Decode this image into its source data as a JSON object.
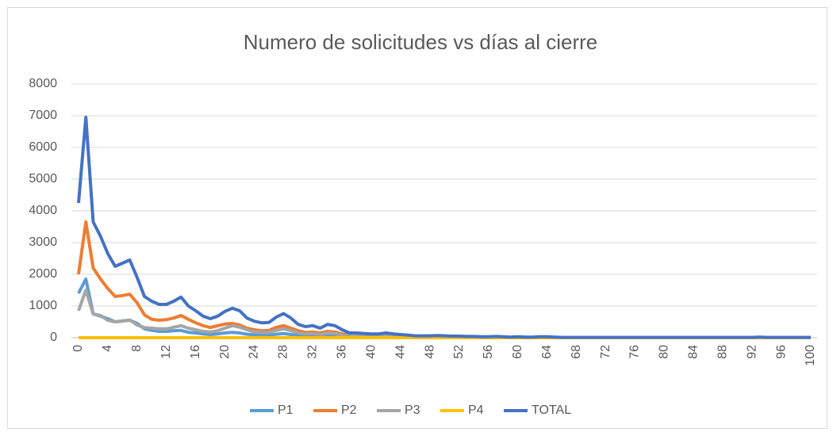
{
  "chart_data": {
    "type": "line",
    "title": "Numero de solicitudes vs días al cierre",
    "x": [
      0,
      1,
      2,
      3,
      4,
      5,
      6,
      7,
      8,
      9,
      10,
      11,
      12,
      13,
      14,
      15,
      16,
      17,
      18,
      19,
      20,
      21,
      22,
      23,
      24,
      25,
      26,
      27,
      28,
      29,
      30,
      31,
      32,
      33,
      34,
      35,
      36,
      37,
      38,
      39,
      40,
      41,
      42,
      43,
      44,
      45,
      46,
      47,
      48,
      49,
      50,
      51,
      52,
      53,
      54,
      55,
      56,
      57,
      58,
      59,
      60,
      61,
      62,
      63,
      64,
      65,
      66,
      67,
      68,
      69,
      70,
      71,
      72,
      73,
      74,
      75,
      76,
      77,
      78,
      79,
      80,
      81,
      82,
      83,
      84,
      85,
      86,
      87,
      88,
      89,
      90,
      91,
      92,
      93,
      94,
      95,
      96,
      97,
      98,
      99,
      100
    ],
    "xlim": [
      0,
      100
    ],
    "xticks": [
      0,
      4,
      8,
      12,
      16,
      20,
      24,
      28,
      32,
      36,
      40,
      44,
      48,
      52,
      56,
      60,
      64,
      68,
      72,
      76,
      80,
      84,
      88,
      92,
      96,
      100
    ],
    "ylim": [
      0,
      8000
    ],
    "yticks": [
      0,
      1000,
      2000,
      3000,
      4000,
      5000,
      6000,
      7000,
      8000
    ],
    "grid": true,
    "legend": "bottom",
    "series": [
      {
        "name": "P1",
        "color": "#5b9bd5",
        "values": [
          1400,
          1850,
          750,
          680,
          600,
          500,
          530,
          550,
          450,
          280,
          230,
          200,
          200,
          220,
          230,
          170,
          150,
          120,
          100,
          120,
          150,
          170,
          150,
          110,
          90,
          80,
          80,
          110,
          130,
          100,
          70,
          60,
          60,
          50,
          70,
          60,
          40,
          20,
          20,
          20,
          20,
          20,
          20,
          20,
          10,
          10,
          10,
          10,
          10,
          10,
          10,
          10,
          10,
          10,
          10,
          0,
          0,
          10,
          0,
          0,
          0,
          0,
          0,
          0,
          0,
          0,
          0,
          0,
          0,
          0,
          0,
          0,
          0,
          0,
          0,
          0,
          0,
          0,
          0,
          0,
          0,
          0,
          0,
          0,
          0,
          0,
          0,
          0,
          0,
          0,
          0,
          0,
          0,
          0,
          0,
          0,
          0,
          0,
          0,
          0,
          0
        ]
      },
      {
        "name": "P2",
        "color": "#ed7d31",
        "values": [
          2000,
          3650,
          2200,
          1850,
          1550,
          1300,
          1330,
          1370,
          1100,
          720,
          580,
          550,
          570,
          620,
          700,
          580,
          470,
          380,
          320,
          380,
          430,
          450,
          400,
          300,
          250,
          220,
          230,
          330,
          380,
          300,
          220,
          170,
          180,
          150,
          200,
          180,
          120,
          70,
          70,
          60,
          50,
          50,
          60,
          50,
          40,
          30,
          30,
          30,
          30,
          30,
          30,
          20,
          20,
          20,
          20,
          10,
          10,
          20,
          10,
          10,
          10,
          10,
          10,
          10,
          10,
          10,
          0,
          0,
          0,
          0,
          0,
          0,
          0,
          0,
          0,
          0,
          0,
          0,
          0,
          0,
          0,
          0,
          0,
          0,
          0,
          0,
          0,
          0,
          0,
          0,
          0,
          0,
          0,
          0,
          0,
          0,
          0,
          0,
          0,
          0,
          0
        ]
      },
      {
        "name": "P3",
        "color": "#a5a5a5",
        "values": [
          850,
          1500,
          750,
          700,
          550,
          500,
          520,
          560,
          400,
          320,
          300,
          280,
          280,
          330,
          380,
          300,
          250,
          200,
          180,
          220,
          300,
          380,
          330,
          250,
          180,
          170,
          170,
          230,
          280,
          220,
          150,
          120,
          130,
          100,
          150,
          130,
          80,
          50,
          50,
          40,
          40,
          40,
          50,
          40,
          40,
          30,
          20,
          20,
          20,
          20,
          20,
          20,
          20,
          10,
          10,
          10,
          10,
          10,
          10,
          10,
          10,
          10,
          10,
          10,
          10,
          10,
          0,
          0,
          0,
          0,
          0,
          0,
          0,
          0,
          0,
          0,
          0,
          0,
          0,
          0,
          0,
          0,
          0,
          0,
          0,
          0,
          0,
          0,
          0,
          0,
          0,
          0,
          0,
          0,
          0,
          0,
          0,
          0,
          0,
          0,
          0
        ]
      },
      {
        "name": "P4",
        "color": "#ffc000",
        "values": [
          0,
          0,
          0,
          0,
          0,
          0,
          0,
          0,
          0,
          0,
          0,
          0,
          0,
          0,
          0,
          0,
          0,
          0,
          0,
          0,
          0,
          0,
          0,
          0,
          0,
          0,
          0,
          0,
          0,
          0,
          0,
          0,
          0,
          0,
          0,
          0,
          0,
          0,
          0,
          0,
          0,
          0,
          0,
          0,
          0,
          0,
          0,
          0,
          0,
          0,
          0,
          0,
          0,
          0,
          0,
          0,
          0,
          0,
          0,
          0,
          0,
          0,
          0,
          0,
          0,
          0,
          0,
          0,
          0,
          0,
          0,
          0,
          0,
          0,
          0,
          0,
          0,
          0,
          0,
          0,
          0,
          0,
          0,
          0,
          0,
          0,
          0,
          0,
          0,
          0,
          0,
          0,
          0,
          0,
          0,
          0,
          0,
          0,
          0,
          0,
          0
        ]
      },
      {
        "name": "TOTAL",
        "color": "#4472c4",
        "values": [
          4250,
          6950,
          3650,
          3200,
          2650,
          2250,
          2350,
          2450,
          1900,
          1300,
          1150,
          1050,
          1050,
          1150,
          1280,
          1000,
          850,
          680,
          600,
          680,
          830,
          930,
          850,
          620,
          520,
          470,
          480,
          650,
          760,
          620,
          420,
          350,
          380,
          300,
          420,
          380,
          250,
          150,
          150,
          130,
          120,
          120,
          150,
          120,
          100,
          80,
          60,
          60,
          60,
          70,
          60,
          50,
          50,
          40,
          40,
          30,
          30,
          40,
          30,
          20,
          30,
          20,
          20,
          30,
          30,
          20,
          10,
          10,
          10,
          10,
          10,
          10,
          10,
          10,
          10,
          10,
          10,
          10,
          10,
          10,
          10,
          10,
          10,
          10,
          10,
          10,
          10,
          10,
          10,
          10,
          10,
          10,
          10,
          20,
          10,
          10,
          10,
          10,
          10,
          10,
          10
        ]
      }
    ]
  }
}
